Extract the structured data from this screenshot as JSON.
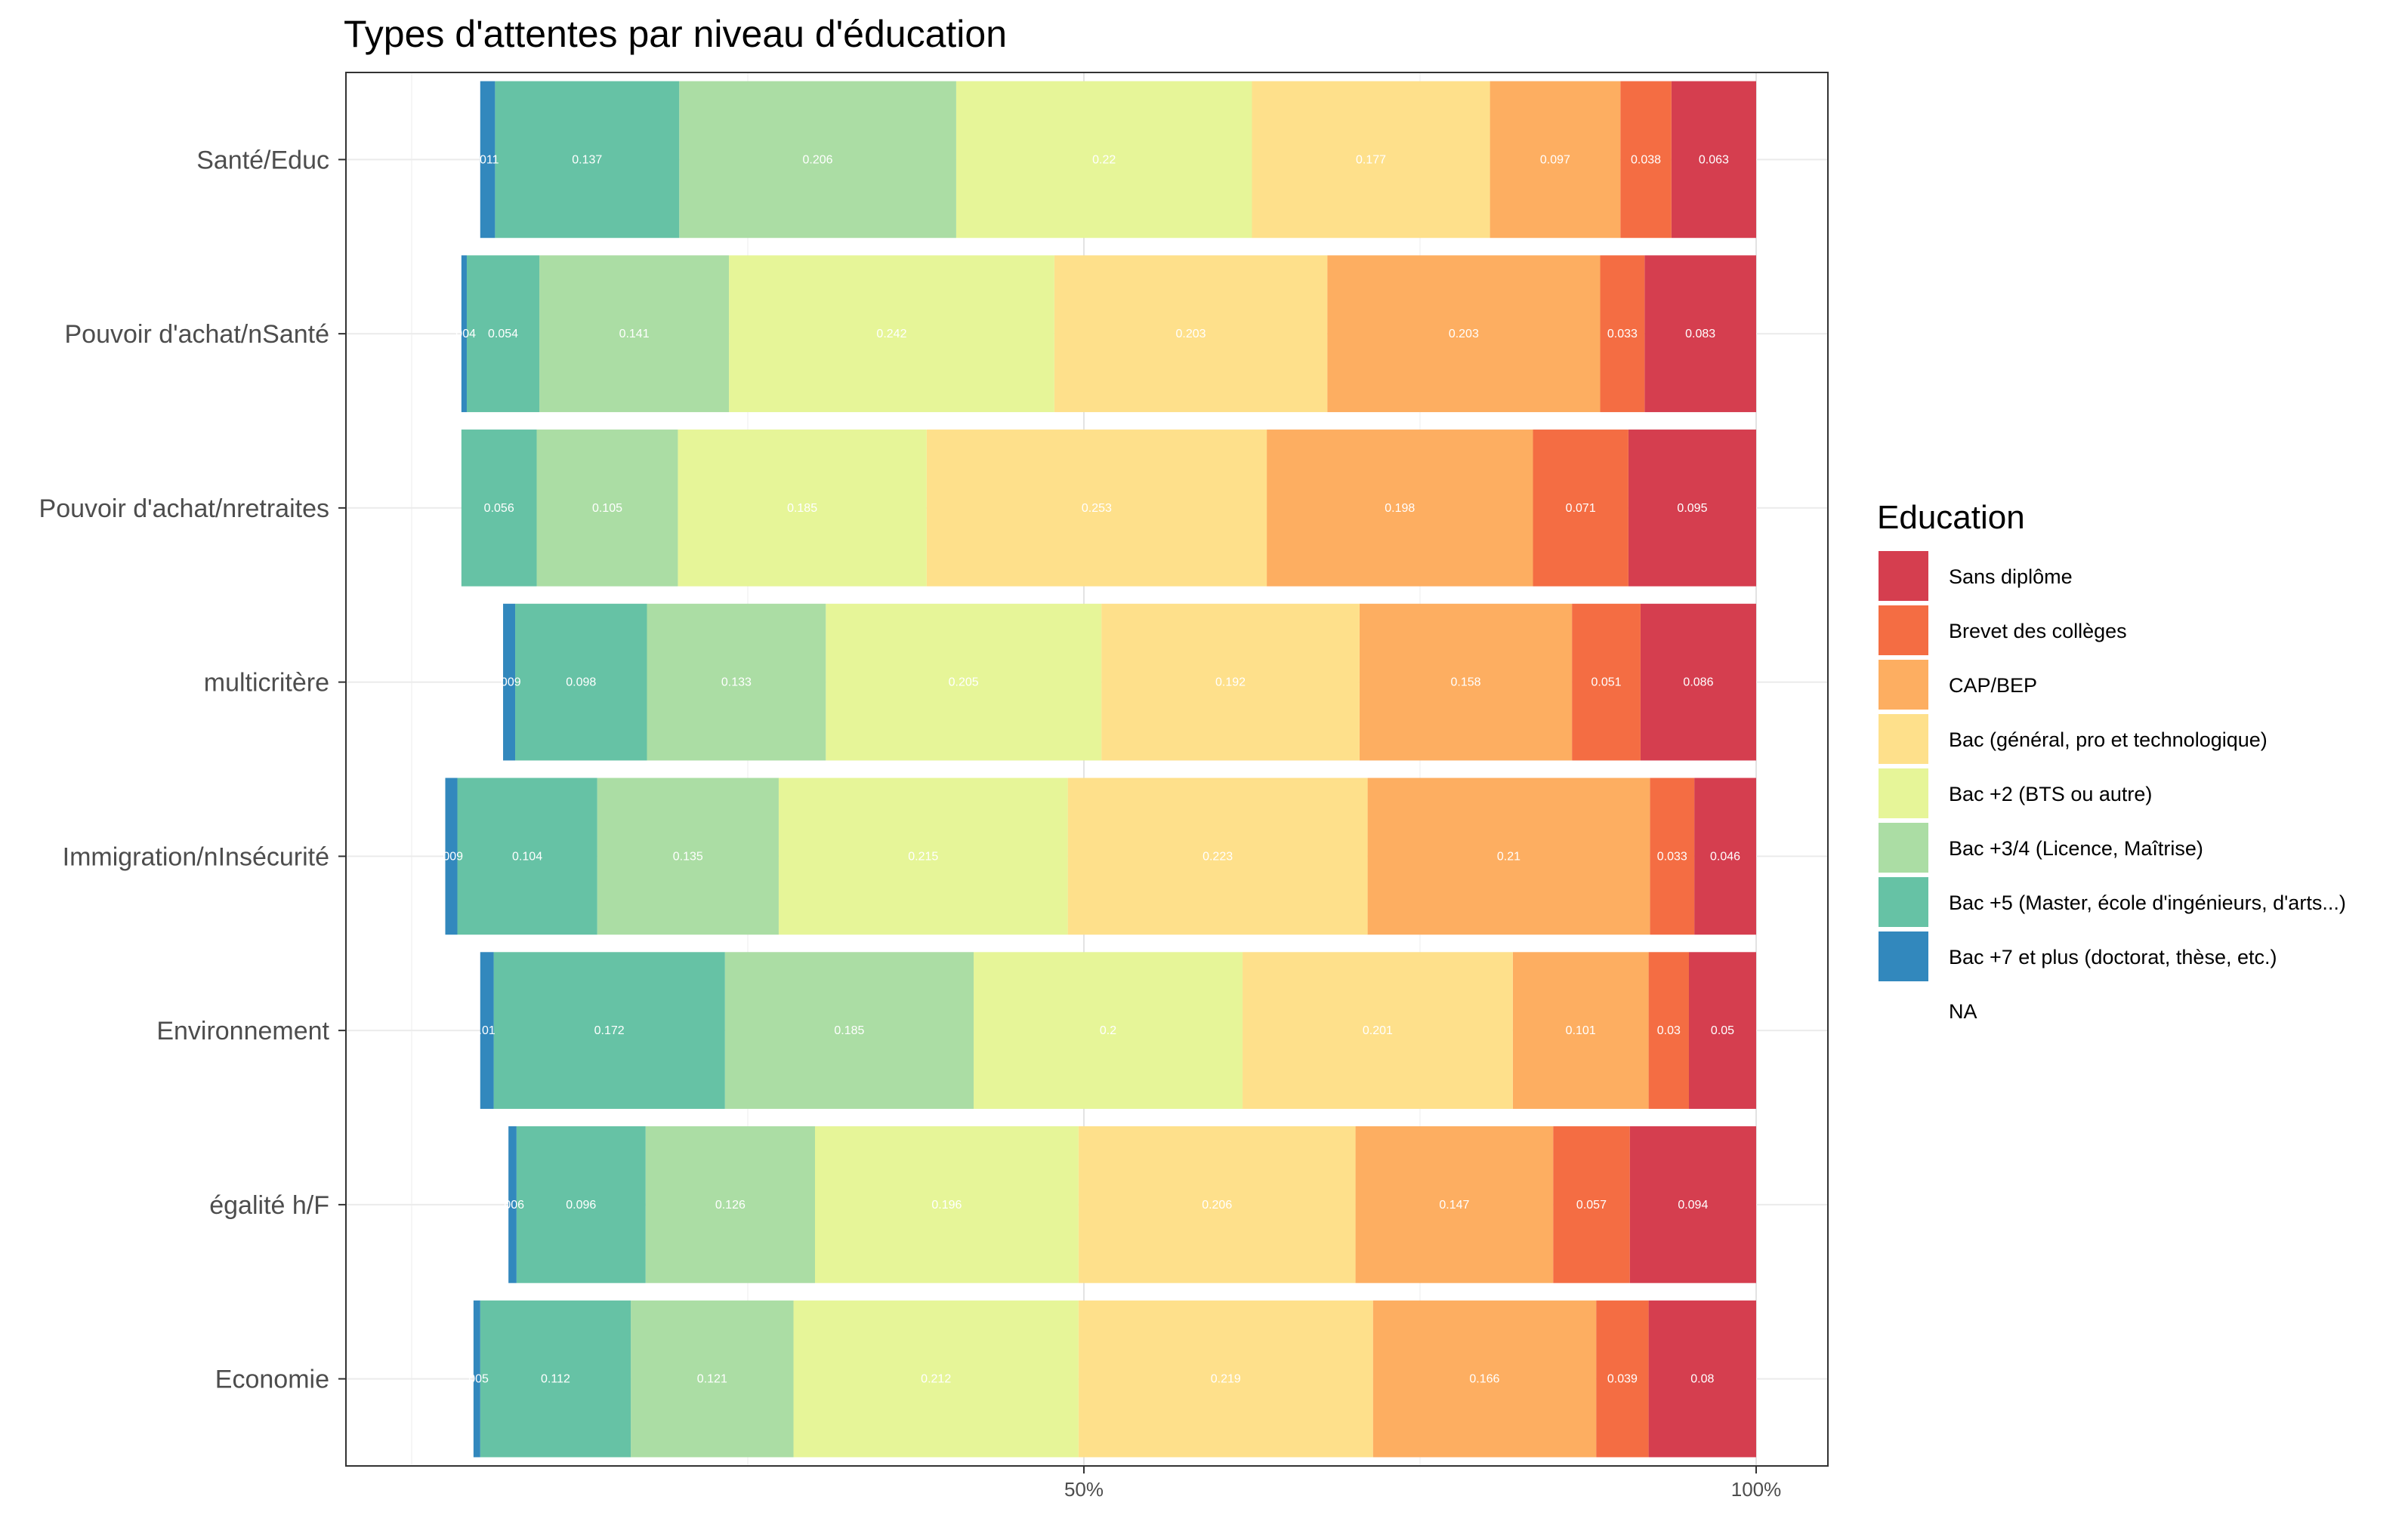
{
  "chart_data": {
    "type": "bar",
    "orientation": "horizontal",
    "stacked": true,
    "title": "Types d'attentes par niveau d'éducation",
    "xlabel": "",
    "ylabel": "",
    "x_ticks": [
      "50%",
      "100%"
    ],
    "xlim": [
      -0.1,
      1.1
    ],
    "grid": true,
    "legend": {
      "title": "Education",
      "position": "right",
      "entries": [
        {
          "name": "Sans diplôme",
          "color": "#D53E4F"
        },
        {
          "name": "Brevet des collèges",
          "color": "#F46D43"
        },
        {
          "name": "CAP/BEP",
          "color": "#FDAE61"
        },
        {
          "name": "Bac (général, pro et technologique)",
          "color": "#FEE08B"
        },
        {
          "name": "Bac +2 (BTS ou autre)",
          "color": "#E6F598"
        },
        {
          "name": "Bac +3/4 (Licence, Maîtrise)",
          "color": "#ABDDA4"
        },
        {
          "name": "Bac +5 (Master, école d'ingénieurs, d'arts...)",
          "color": "#66C2A5"
        },
        {
          "name": "Bac +7 et plus (doctorat, thèse, etc.)",
          "color": "#3288BD"
        },
        {
          "name": "NA",
          "color": "#FFFFFF"
        }
      ]
    },
    "categories": [
      "Santé/Educ",
      "Pouvoir d'achat/nSanté",
      "Pouvoir d'achat/nretraites",
      "multicritère",
      "Immigration/nInsécurité ",
      "Environnement",
      "égalité h/F",
      "Economie"
    ],
    "series": [
      {
        "name": "Sans diplôme",
        "values": [
          0.063,
          0.083,
          0.095,
          0.086,
          0.046,
          0.05,
          0.094,
          0.08
        ]
      },
      {
        "name": "Brevet des collèges",
        "values": [
          0.038,
          0.033,
          0.071,
          0.051,
          0.033,
          0.03,
          0.057,
          0.039
        ]
      },
      {
        "name": "CAP/BEP",
        "values": [
          0.097,
          0.203,
          0.198,
          0.158,
          0.21,
          0.101,
          0.147,
          0.166
        ]
      },
      {
        "name": "Bac (général, pro et technologique)",
        "values": [
          0.177,
          0.203,
          0.253,
          0.192,
          0.223,
          0.201,
          0.206,
          0.219
        ]
      },
      {
        "name": "Bac +2 (BTS ou autre)",
        "values": [
          0.22,
          0.242,
          0.185,
          0.205,
          0.215,
          0.2,
          0.196,
          0.212
        ]
      },
      {
        "name": "Bac +3/4 (Licence, Maîtrise)",
        "values": [
          0.206,
          0.141,
          0.105,
          0.133,
          0.135,
          0.185,
          0.126,
          0.121
        ]
      },
      {
        "name": "Bac +5 (Master, école d'ingénieurs, d'arts...)",
        "values": [
          0.137,
          0.054,
          0.056,
          0.098,
          0.104,
          0.172,
          0.096,
          0.112
        ]
      },
      {
        "name": "Bac +7 et plus (doctorat, thèse, etc.)",
        "values": [
          0.011,
          0.004,
          0,
          0.009,
          0.009,
          0.01,
          0.006,
          0.005
        ]
      }
    ],
    "bar_labels": [
      [
        "0.063",
        "0.038",
        "0.097",
        "0.177",
        "0.22",
        "0.206",
        "0.137",
        ".011"
      ],
      [
        "0.083",
        "0.033",
        "0.203",
        "0.203",
        "0.242",
        "0.141",
        "0.054",
        ".004"
      ],
      [
        "0.095",
        "0.071",
        "0.198",
        "0.253",
        "0.185",
        "0.105",
        "0.056",
        ""
      ],
      [
        "0.086",
        "0.051",
        "0.158",
        "0.192",
        "0.205",
        "0.133",
        "0.098",
        ".009"
      ],
      [
        "0.046",
        "0.033",
        "0.21",
        "0.223",
        "0.215",
        "0.135",
        "0.104",
        ".009"
      ],
      [
        "0.05",
        "0.03",
        "0.101",
        "0.201",
        "0.2",
        "0.185",
        "0.172",
        ".01"
      ],
      [
        "0.094",
        "0.057",
        "0.147",
        "0.206",
        "0.196",
        "0.126",
        "0.096",
        ".006"
      ],
      [
        "0.08",
        "0.039",
        "0.166",
        "0.219",
        "0.212",
        "0.121",
        "0.112",
        ".005"
      ]
    ]
  }
}
